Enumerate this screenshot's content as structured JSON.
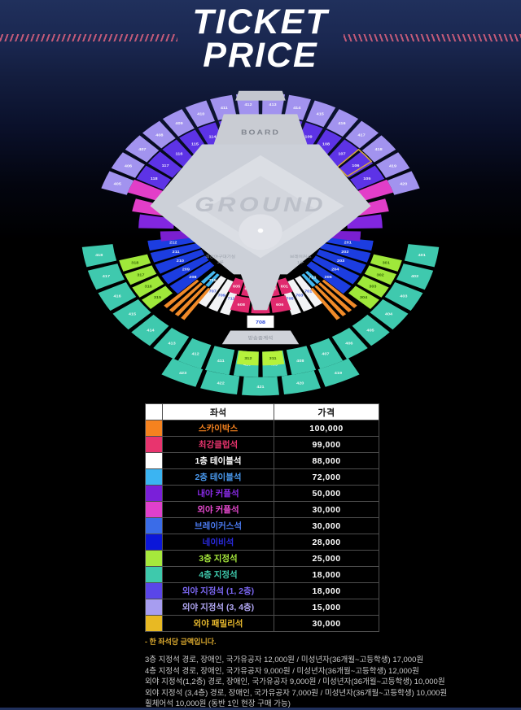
{
  "header": {
    "title_line1": "TICKET",
    "title_line2": "PRICE"
  },
  "stadium": {
    "board_label": "BOARD",
    "ground_label": "GROUND",
    "broadcast_label": "방송중계석",
    "center_section_label": "708",
    "dugout_left": {
      "line1": "최강야구대기실",
      "line2": "3루"
    },
    "dugout_right": {
      "line1": "브레이커스",
      "line2": "1루"
    },
    "rings": [
      {
        "name": "outfield-4f-ring",
        "color": "#a293ef",
        "r0": 168,
        "r1": 200,
        "a0": -163,
        "a1": -17,
        "n": 16,
        "labels": [
          "405",
          "406",
          "407",
          "408",
          "409",
          "410",
          "411",
          "412",
          "413",
          "414",
          "415",
          "416",
          "417",
          "418",
          "419",
          "420"
        ],
        "lc": "#ffffff"
      },
      {
        "name": "outfield-12f-ring",
        "color": "#5d33e6",
        "r0": 130,
        "r1": 166,
        "a0": -154,
        "a1": -26,
        "n": 14,
        "labels": [
          "118",
          "117",
          "116",
          "115",
          "114",
          "113",
          "112",
          "111",
          "110",
          "109",
          "108",
          "107",
          "106",
          "105"
        ],
        "lc": "#ffffff"
      },
      {
        "name": "teal-4f-ring",
        "color": "#3fc9ae",
        "r0": 178,
        "r1": 215,
        "a0": 6,
        "a1": 174,
        "n": 18,
        "labels": [
          "401",
          "402",
          "403",
          "404",
          "405",
          "406",
          "407",
          "408",
          "409",
          "410",
          "411",
          "412",
          "413",
          "414",
          "415",
          "416",
          "417",
          "418"
        ],
        "lc": "#ffffff"
      },
      {
        "name": "teal-4f-bottom-row",
        "color": "#3fc9ae",
        "r0": 215,
        "r1": 242,
        "a0": 60,
        "a1": 120,
        "n": 5,
        "labels": [
          "419",
          "420",
          "421",
          "422",
          "423"
        ],
        "lc": "#ffffff"
      },
      {
        "name": "lime-3f-bottom",
        "color": "#b5f23c",
        "r0": 178,
        "r1": 198,
        "a0": 81,
        "a1": 99,
        "n": 2,
        "labels": [
          "311",
          "312"
        ],
        "lc": "#2a5a00"
      },
      {
        "name": "green-3f-left",
        "color": "#9fe83a",
        "r0": 140,
        "r1": 175,
        "a0": 138,
        "a1": 166,
        "n": 4,
        "labels": [
          "315",
          "316",
          "317",
          "318"
        ],
        "lc": "#2a5a00"
      },
      {
        "name": "green-3f-right",
        "color": "#9fe83a",
        "r0": 140,
        "r1": 175,
        "a0": 14,
        "a1": 42,
        "n": 4,
        "labels": [
          "301",
          "302",
          "303",
          "304"
        ],
        "lc": "#2a5a00"
      },
      {
        "name": "navy-ring-left",
        "color": "#1c3de0",
        "r0": 76,
        "r1": 136,
        "a0": 136,
        "a1": 174,
        "n": 5,
        "labels": [
          "208",
          "209",
          "210",
          "211",
          "212"
        ],
        "lc": "#ffffff"
      },
      {
        "name": "navy-ring-right",
        "color": "#1c3de0",
        "r0": 76,
        "r1": 136,
        "a0": 6,
        "a1": 44,
        "n": 5,
        "labels": [
          "201",
          "202",
          "203",
          "204",
          "205"
        ],
        "lc": "#ffffff"
      },
      {
        "name": "white-table-left",
        "color": "#f2f3f5",
        "r0": 82,
        "r1": 130,
        "a0": 106,
        "a1": 126,
        "n": 3,
        "labels": [
          "711",
          "709",
          "707"
        ],
        "lc": "#2a46d8"
      },
      {
        "name": "white-table-right",
        "color": "#f2f3f5",
        "r0": 82,
        "r1": 130,
        "a0": 54,
        "a1": 74,
        "n": 3,
        "labels": [
          "701",
          "703",
          "705"
        ],
        "lc": "#2a46d8"
      },
      {
        "name": "sky-table-left",
        "color": "#45b8f0",
        "r0": 82,
        "r1": 104,
        "a0": 126,
        "a1": 134,
        "n": 2,
        "labels": [
          "715",
          ""
        ],
        "lc": "#ffffff"
      },
      {
        "name": "sky-table-right",
        "color": "#45b8f0",
        "r0": 82,
        "r1": 104,
        "a0": 46,
        "a1": 54,
        "n": 2,
        "labels": [
          "713",
          ""
        ],
        "lc": "#ffffff"
      },
      {
        "name": "crimson-club-inner",
        "color": "#e02a6e",
        "r0": 76,
        "r1": 98,
        "a0": 66,
        "a1": 114,
        "n": 5,
        "labels": [
          "601",
          "602",
          "603",
          "604",
          "605"
        ],
        "lc": "#ffffff"
      },
      {
        "name": "crimson-club-outer",
        "color": "#e02a6e",
        "r0": 100,
        "r1": 122,
        "a0": 72,
        "a1": 108,
        "n": 3,
        "labels": [
          "606",
          "607",
          "608"
        ],
        "lc": "#ffffff"
      },
      {
        "name": "skybox-left",
        "color": "#f08a28",
        "r0": 105,
        "r1": 160,
        "a0": 124,
        "a1": 137,
        "n": 4,
        "labels": [],
        "lc": "#ffffff"
      },
      {
        "name": "skybox-right",
        "color": "#f08a28",
        "r0": 105,
        "r1": 160,
        "a0": 43,
        "a1": 56,
        "n": 4,
        "labels": [],
        "lc": "#ffffff"
      }
    ],
    "strips": [
      {
        "name": "outfield-couple-strip",
        "color": "#e23ec8",
        "r0": 130,
        "r1": 168,
        "a0": -161,
        "a1": -154
      },
      {
        "name": "outfield-couple-strip",
        "color": "#e23ec8",
        "r0": 130,
        "r1": 168,
        "a0": -26,
        "a1": -19
      },
      {
        "name": "outfield-couple-strip",
        "color": "#e23ec8",
        "r0": 118,
        "r1": 156,
        "a0": -170,
        "a1": -163
      },
      {
        "name": "outfield-couple-strip",
        "color": "#e23ec8",
        "r0": 118,
        "r1": 156,
        "a0": -17,
        "a1": -10
      },
      {
        "name": "infield-couple-strip",
        "color": "#8226e0",
        "r0": 104,
        "r1": 146,
        "a0": -179,
        "a1": -171
      },
      {
        "name": "infield-couple-strip",
        "color": "#8226e0",
        "r0": 104,
        "r1": 146,
        "a0": -9,
        "a1": -1
      },
      {
        "name": "infield-couple-strip",
        "color": "#7a1fd0",
        "r0": 80,
        "r1": 120,
        "a0": 172,
        "a1": 179
      },
      {
        "name": "infield-couple-strip",
        "color": "#7a1fd0",
        "r0": 80,
        "r1": 120,
        "a0": 1,
        "a1": 8
      }
    ],
    "gold_section": {
      "name": "family-gold-outline",
      "color": "#d8a93c",
      "r0": 130,
      "r1": 166,
      "a0": -45,
      "a1": -37
    }
  },
  "table": {
    "headers": {
      "seat": "좌석",
      "price": "가격"
    },
    "rows": [
      {
        "seat": "스카이박스",
        "price": "100,000",
        "swatch": "#f5821f",
        "text_color": "#f5821f"
      },
      {
        "seat": "최강클럽석",
        "price": "99,000",
        "swatch": "#e8346e",
        "text_color": "#e8346e"
      },
      {
        "seat": "1층 테이블석",
        "price": "88,000",
        "swatch": "#ffffff",
        "text_color": "#ffffff"
      },
      {
        "seat": "2층 테이블석",
        "price": "72,000",
        "swatch": "#3bb4f2",
        "text_color": "#4a9af0"
      },
      {
        "seat": "내야 커플석",
        "price": "50,000",
        "swatch": "#7a1fd9",
        "text_color": "#8a2be8"
      },
      {
        "seat": "외야 커플석",
        "price": "30,000",
        "swatch": "#e040cc",
        "text_color": "#e84ad0"
      },
      {
        "seat": "브레이커스석",
        "price": "30,000",
        "swatch": "#3a6ce8",
        "text_color": "#4a7af0"
      },
      {
        "seat": "네이비석",
        "price": "28,000",
        "swatch": "#0b16d9",
        "text_color": "#2a2ae0"
      },
      {
        "seat": "3층 지정석",
        "price": "25,000",
        "swatch": "#a6e83c",
        "text_color": "#a6e83c"
      },
      {
        "seat": "4층 지정석",
        "price": "18,000",
        "swatch": "#3ec9ac",
        "text_color": "#3ec9ac"
      },
      {
        "seat": "외야 지정석 (1, 2층)",
        "price": "18,000",
        "swatch": "#5a46e8",
        "text_color": "#7a66f0"
      },
      {
        "seat": "외야 지정석 (3, 4층)",
        "price": "15,000",
        "swatch": "#a79df0",
        "text_color": "#b0a6f2"
      },
      {
        "seat": "외야 패밀리석",
        "price": "30,000",
        "swatch": "#e8b923",
        "text_color": "#e8b92e"
      }
    ]
  },
  "note": "- 한 좌석당 금액입니다.",
  "footnotes": [
    "3층 지정석 경로, 장애인, 국가유공자 12,000원 / 미성년자(36개월~고등학생) 17,000원",
    "4층 지정석 경로, 장애인, 국가유공자 9,000원 / 미성년자(36개월~고등학생) 12,000원",
    "외야 지정석(1,2층) 경로, 장애인, 국가유공자 9,000원 / 미성년자(36개월~고등학생) 10,000원",
    "외야 지정석 (3,4층) 경로, 장애인, 국가유공자 7,000원 / 미성년자(36개월~고등학생) 10,000원",
    "휠체어석 10,000원 (동반 1인 현장 구매 가능)"
  ]
}
